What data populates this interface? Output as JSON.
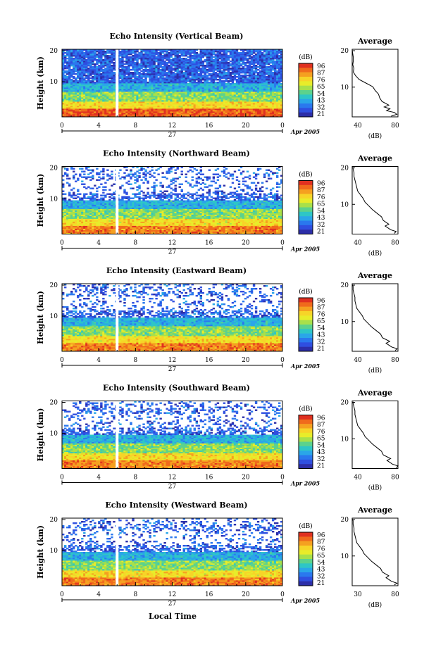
{
  "chart_data": {
    "type": "heatmap",
    "x_ticks": [
      "0",
      "4",
      "8",
      "12",
      "16",
      "20",
      "0"
    ],
    "y_ticks": [
      "20",
      "10"
    ],
    "ylabel": "Height (km)",
    "date_label": "27",
    "month_label": "Apr 2005",
    "xlabel": "Local Time",
    "colorbar": {
      "unit": "(dB)",
      "ticks": [
        "96",
        "87",
        "76",
        "65",
        "54",
        "43",
        "32",
        "21"
      ],
      "colors": [
        "#e03020",
        "#f06a1c",
        "#f5a020",
        "#f7d428",
        "#e8ec2a",
        "#a8e04a",
        "#5cd28c",
        "#2ec6c6",
        "#2aa6e8",
        "#2a78ee",
        "#2f4fe0",
        "#2c2ea8"
      ]
    },
    "profile": {
      "title": "Average",
      "unit": "(dB)"
    },
    "panels": [
      {
        "title": "Echo Intensity (Vertical Beam)",
        "profile_x_ticks": [
          "40",
          "80"
        ],
        "profile_xlim": [
          40,
          80
        ],
        "profile": [
          [
            74,
            2
          ],
          [
            79,
            2.5
          ],
          [
            77,
            3
          ],
          [
            70,
            3.5
          ],
          [
            73,
            4
          ],
          [
            68,
            4.5
          ],
          [
            72,
            5
          ],
          [
            66,
            6
          ],
          [
            64,
            7
          ],
          [
            63,
            8
          ],
          [
            60,
            9
          ],
          [
            58,
            10
          ],
          [
            52,
            11
          ],
          [
            46,
            12
          ],
          [
            43,
            13
          ],
          [
            41,
            14
          ],
          [
            41.5,
            15
          ],
          [
            40.5,
            16
          ],
          [
            41,
            17
          ],
          [
            41,
            18
          ],
          [
            40.5,
            19
          ],
          [
            40,
            20
          ]
        ]
      },
      {
        "title": "Echo Intensity (Northward Beam)",
        "profile_x_ticks": [
          "40",
          "80"
        ],
        "profile_xlim": [
          30,
          80
        ],
        "profile": [
          [
            76,
            2
          ],
          [
            78,
            2.5
          ],
          [
            72,
            3
          ],
          [
            66,
            4
          ],
          [
            70,
            4.5
          ],
          [
            64,
            5.5
          ],
          [
            62,
            6.5
          ],
          [
            57,
            7.5
          ],
          [
            52,
            8.5
          ],
          [
            48,
            9.5
          ],
          [
            44,
            10.5
          ],
          [
            42,
            11.5
          ],
          [
            39,
            12.5
          ],
          [
            36,
            13.5
          ],
          [
            35,
            14.5
          ],
          [
            34,
            15.5
          ],
          [
            33,
            16.5
          ],
          [
            32,
            17.5
          ],
          [
            32,
            18.5
          ],
          [
            31,
            19.5
          ],
          [
            31,
            20
          ]
        ]
      },
      {
        "title": "Echo Intensity (Eastward Beam)",
        "profile_x_ticks": [
          "40",
          "80"
        ],
        "profile_xlim": [
          30,
          80
        ],
        "profile": [
          [
            77,
            2
          ],
          [
            79,
            2.5
          ],
          [
            73,
            3
          ],
          [
            67,
            4
          ],
          [
            71,
            4.5
          ],
          [
            63,
            5.5
          ],
          [
            61,
            6.5
          ],
          [
            56,
            7.5
          ],
          [
            51,
            8.5
          ],
          [
            47,
            9.5
          ],
          [
            43,
            10.5
          ],
          [
            41,
            11.5
          ],
          [
            38,
            12.5
          ],
          [
            35,
            13.5
          ],
          [
            34,
            14.5
          ],
          [
            33,
            15.5
          ],
          [
            33,
            16.5
          ],
          [
            32,
            17.5
          ],
          [
            31,
            18.5
          ],
          [
            31,
            19.5
          ],
          [
            30,
            20
          ]
        ]
      },
      {
        "title": "Echo Intensity (Southward Beam)",
        "profile_x_ticks": [
          "40",
          "80"
        ],
        "profile_xlim": [
          30,
          80
        ],
        "profile": [
          [
            78,
            2
          ],
          [
            80,
            2.5
          ],
          [
            74,
            3
          ],
          [
            68,
            4
          ],
          [
            72,
            4.5
          ],
          [
            64,
            5.5
          ],
          [
            62,
            6.5
          ],
          [
            57,
            7.5
          ],
          [
            52,
            8.5
          ],
          [
            48,
            9.5
          ],
          [
            44,
            10.5
          ],
          [
            42,
            11.5
          ],
          [
            39,
            12.5
          ],
          [
            36,
            13.5
          ],
          [
            35,
            14.5
          ],
          [
            34,
            15.5
          ],
          [
            33,
            16.5
          ],
          [
            33,
            17.5
          ],
          [
            32,
            18.5
          ],
          [
            31,
            19.5
          ],
          [
            31,
            20
          ]
        ]
      },
      {
        "title": "Echo Intensity (Westward Beam)",
        "profile_x_ticks": [
          "30",
          "80"
        ],
        "profile_xlim": [
          30,
          80
        ],
        "profile": [
          [
            76,
            2
          ],
          [
            79,
            2.5
          ],
          [
            73,
            3
          ],
          [
            67,
            4
          ],
          [
            70,
            4.5
          ],
          [
            63,
            5.5
          ],
          [
            61,
            6.5
          ],
          [
            56,
            7.5
          ],
          [
            51,
            8.5
          ],
          [
            47,
            9.5
          ],
          [
            43,
            10.5
          ],
          [
            41,
            11.5
          ],
          [
            38,
            12.5
          ],
          [
            35,
            13.5
          ],
          [
            34,
            14.5
          ],
          [
            33,
            15.5
          ],
          [
            32,
            16.5
          ],
          [
            32,
            17.5
          ],
          [
            31,
            18.5
          ],
          [
            31,
            19.5
          ],
          [
            30,
            20
          ]
        ]
      }
    ]
  }
}
